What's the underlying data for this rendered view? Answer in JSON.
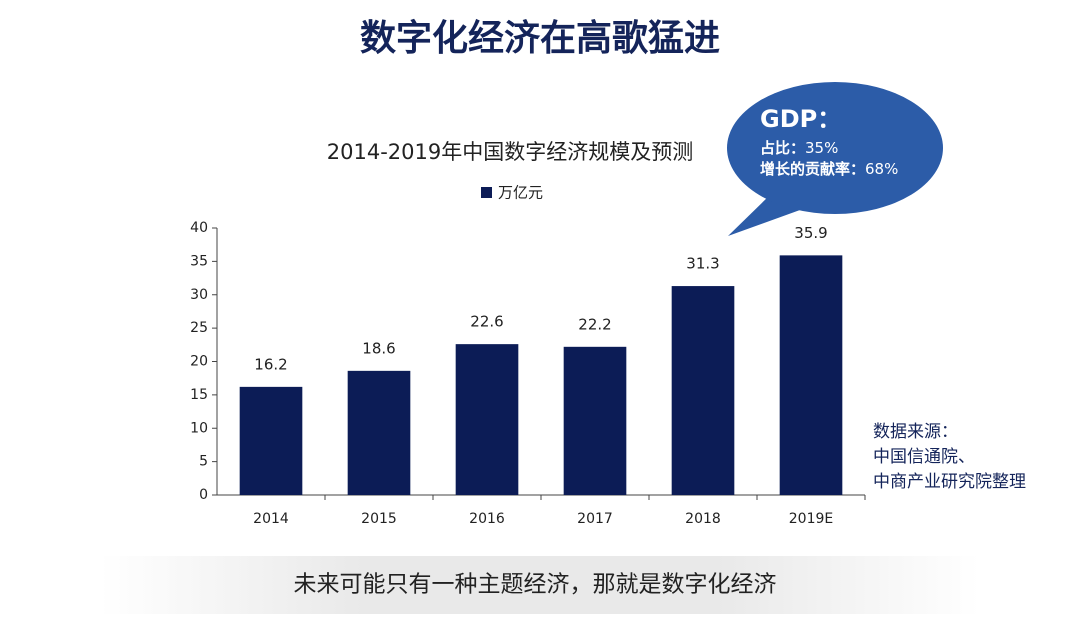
{
  "chart_data": {
    "type": "bar",
    "heading": "数字化经济在高歌猛进",
    "title": "2014-2019年中国数字经济规模及预测",
    "categories": [
      "2014",
      "2015",
      "2016",
      "2017",
      "2018",
      "2019E"
    ],
    "series": [
      {
        "name": "万亿元",
        "color": "#0c1c56",
        "values": [
          16.2,
          18.6,
          22.6,
          22.2,
          31.3,
          35.9
        ]
      }
    ],
    "ylim": [
      0,
      40
    ],
    "yticks": [
      0,
      5,
      10,
      15,
      20,
      25,
      30,
      35,
      40
    ],
    "callout": {
      "heading": "GDP：",
      "lines": [
        {
          "label": "占比：",
          "value": "35%"
        },
        {
          "label": "增长的贡献率：",
          "value": "68%"
        }
      ]
    },
    "source": [
      "数据来源：",
      "中国信通院、",
      "中商产业研究院整理"
    ],
    "footer": "未来可能只有一种主题经济，那就是数字化经济"
  }
}
